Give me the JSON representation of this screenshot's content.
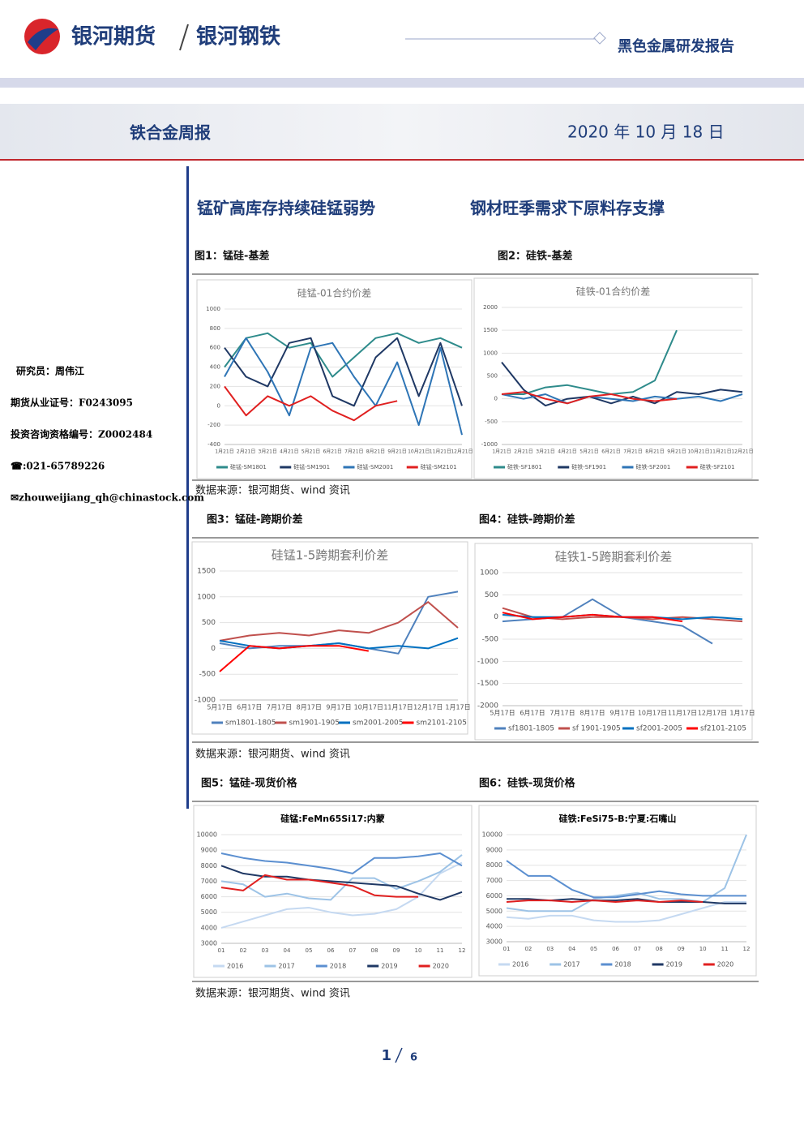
{
  "header": {
    "brand": "银河期货",
    "division": "银河钢铁",
    "report_type": "黑色金属研发报告",
    "title": "铁合金周报",
    "date": "2020 年 10 月 18 日"
  },
  "sidebar": {
    "analyst": "研究员：周伟江",
    "license": "期货从业证号：F0243095",
    "consult_license": "投资咨询资格编号：Z0002484",
    "phone": "☎:021-65789226",
    "email": "✉zhouweijiang_qh@chinastock.com"
  },
  "headlines": [
    "锰矿高库存持续硅锰弱势",
    "钢材旺季需求下原料存支撑"
  ],
  "sources": [
    "数据来源：银河期货、wind 资讯",
    "数据来源：银河期货、wind 资讯",
    "数据来源：银河期货、wind 资讯"
  ],
  "page": {
    "current": 1,
    "total": 6
  },
  "chart_data": [
    {
      "type": "line",
      "caption": "图1：锰硅-基差",
      "title": "硅锰-01合约价差",
      "grid": true,
      "legend": "bottom",
      "categories": [
        "1月21日",
        "2月21日",
        "3月21日",
        "4月21日",
        "5月21日",
        "6月21日",
        "7月21日",
        "8月21日",
        "9月21日",
        "10月21日",
        "11月21日",
        "12月21日"
      ],
      "ylim": [
        -400,
        1000
      ],
      "yticks": [
        -400,
        -200,
        0,
        200,
        400,
        600,
        800,
        1000
      ],
      "series": [
        {
          "name": "硅锰-SM1801",
          "color": "#2e8b8b",
          "values": [
            400,
            700,
            750,
            600,
            650,
            300,
            500,
            700,
            750,
            650,
            700,
            600
          ]
        },
        {
          "name": "硅锰-SM1901",
          "color": "#1f3864",
          "values": [
            600,
            300,
            200,
            650,
            700,
            100,
            0,
            500,
            700,
            100,
            650,
            0
          ]
        },
        {
          "name": "硅锰-SM2001",
          "color": "#2e75b6",
          "values": [
            300,
            700,
            350,
            -100,
            600,
            650,
            300,
            0,
            450,
            -200,
            600,
            -300
          ]
        },
        {
          "name": "硅锰-SM2101",
          "color": "#e02020",
          "values": [
            200,
            -100,
            100,
            0,
            100,
            -50,
            -150,
            0,
            50,
            null,
            null,
            null
          ]
        }
      ]
    },
    {
      "type": "line",
      "caption": "图2：硅铁-基差",
      "title": "硅铁-01合约价差",
      "grid": true,
      "legend": "bottom",
      "categories": [
        "1月21日",
        "2月21日",
        "3月21日",
        "4月21日",
        "5月21日",
        "6月21日",
        "7月21日",
        "8月21日",
        "9月21日",
        "10月21日",
        "11月21日",
        "12月21日"
      ],
      "ylim": [
        -1000,
        2000
      ],
      "yticks": [
        -1000,
        -500,
        0,
        500,
        1000,
        1500,
        2000
      ],
      "series": [
        {
          "name": "硅铁-SF1801",
          "color": "#2e8b8b",
          "values": [
            100,
            100,
            250,
            300,
            200,
            100,
            150,
            400,
            1500,
            null,
            null,
            null
          ]
        },
        {
          "name": "硅铁-SF1901",
          "color": "#1f3864",
          "values": [
            800,
            200,
            -150,
            0,
            50,
            -100,
            50,
            -100,
            150,
            100,
            200,
            150
          ]
        },
        {
          "name": "硅铁-SF2001",
          "color": "#2e75b6",
          "values": [
            100,
            0,
            100,
            -100,
            50,
            0,
            -50,
            50,
            0,
            50,
            -50,
            100
          ]
        },
        {
          "name": "硅铁-SF2101",
          "color": "#e02020",
          "values": [
            100,
            150,
            0,
            -100,
            50,
            100,
            0,
            -50,
            0,
            null,
            null,
            null
          ]
        }
      ]
    },
    {
      "type": "line",
      "caption": "图3：锰硅-跨期价差",
      "title": "硅锰1-5跨期套利价差",
      "grid": true,
      "legend": "bottom",
      "categories": [
        "5月17日",
        "6月17日",
        "7月17日",
        "8月17日",
        "9月17日",
        "10月17日",
        "11月17日",
        "12月17日",
        "1月17日"
      ],
      "ylim": [
        -1000,
        1500
      ],
      "yticks": [
        -1000,
        -500,
        0,
        500,
        1000,
        1500
      ],
      "series": [
        {
          "name": "sm1801-1805",
          "color": "#4f81bd",
          "values": [
            100,
            0,
            50,
            50,
            100,
            0,
            -100,
            1000,
            1100
          ]
        },
        {
          "name": "sm1901-1905",
          "color": "#c0504d",
          "values": [
            150,
            250,
            300,
            250,
            350,
            300,
            500,
            900,
            400
          ]
        },
        {
          "name": "sm2001-2005",
          "color": "#0070c0",
          "values": [
            150,
            50,
            0,
            50,
            100,
            0,
            50,
            0,
            200
          ]
        },
        {
          "name": "sm2101-2105",
          "color": "#ff0000",
          "values": [
            -450,
            50,
            0,
            50,
            50,
            -50,
            null,
            null,
            null
          ]
        }
      ]
    },
    {
      "type": "line",
      "caption": "图4：硅铁-跨期价差",
      "title": "硅铁1-5跨期套利价差",
      "grid": true,
      "legend": "bottom",
      "categories": [
        "5月17日",
        "6月17日",
        "7月17日",
        "8月17日",
        "9月17日",
        "10月17日",
        "11月17日",
        "12月17日",
        "1月17日"
      ],
      "ylim": [
        -2000,
        1000
      ],
      "yticks": [
        -2000,
        -1500,
        -1000,
        -500,
        0,
        500,
        1000
      ],
      "series": [
        {
          "name": "sf1801-1805",
          "color": "#4f81bd",
          "values": [
            -100,
            -50,
            0,
            400,
            0,
            -100,
            -200,
            -600,
            null
          ]
        },
        {
          "name": "sf 1901-1905",
          "color": "#c0504d",
          "values": [
            200,
            0,
            -50,
            0,
            0,
            -50,
            0,
            -50,
            -100
          ]
        },
        {
          "name": "sf2001-2005",
          "color": "#0070c0",
          "values": [
            50,
            0,
            0,
            50,
            0,
            0,
            -50,
            0,
            -50
          ]
        },
        {
          "name": "sf2101-2105",
          "color": "#ff0000",
          "values": [
            100,
            -50,
            0,
            50,
            0,
            0,
            -100,
            null,
            null
          ]
        }
      ]
    },
    {
      "type": "line",
      "caption": "图5：锰硅-现货价格",
      "title": "硅锰:FeMn65Si17:内蒙",
      "grid": true,
      "legend": "bottom",
      "categories": [
        "01",
        "02",
        "03",
        "04",
        "05",
        "06",
        "07",
        "08",
        "09",
        "10",
        "11",
        "12"
      ],
      "ylim": [
        3000,
        10000
      ],
      "yticks": [
        3000,
        4000,
        5000,
        6000,
        7000,
        8000,
        9000,
        10000
      ],
      "series": [
        {
          "name": "2016",
          "color": "#c5d9f1",
          "values": [
            4000,
            4400,
            4800,
            5200,
            5300,
            5000,
            4800,
            4900,
            5200,
            6000,
            7500,
            8200
          ]
        },
        {
          "name": "2017",
          "color": "#9dc3e6",
          "values": [
            7000,
            6800,
            6000,
            6200,
            5900,
            5800,
            7200,
            7200,
            6500,
            7000,
            7600,
            8700
          ]
        },
        {
          "name": "2018",
          "color": "#5b8fd0",
          "values": [
            8800,
            8500,
            8300,
            8200,
            8000,
            7800,
            7500,
            8500,
            8500,
            8600,
            8800,
            8000
          ]
        },
        {
          "name": "2019",
          "color": "#1f3864",
          "values": [
            8000,
            7500,
            7300,
            7300,
            7100,
            7000,
            6900,
            6800,
            6700,
            6200,
            5800,
            6300
          ]
        },
        {
          "name": "2020",
          "color": "#e02020",
          "values": [
            6600,
            6400,
            7400,
            7100,
            7100,
            6900,
            6700,
            6100,
            6000,
            6000,
            null,
            null
          ]
        }
      ]
    },
    {
      "type": "line",
      "caption": "图6：硅铁-现货价格",
      "title": "硅铁:FeSi75-B:宁夏:石嘴山",
      "grid": true,
      "legend": "bottom",
      "categories": [
        "01",
        "02",
        "03",
        "04",
        "05",
        "06",
        "07",
        "08",
        "09",
        "10",
        "11",
        "12"
      ],
      "ylim": [
        3000,
        10000
      ],
      "yticks": [
        3000,
        4000,
        5000,
        6000,
        7000,
        8000,
        9000,
        10000
      ],
      "series": [
        {
          "name": "2016",
          "color": "#c5d9f1",
          "values": [
            4600,
            4500,
            4700,
            4700,
            4400,
            4300,
            4300,
            4400,
            4800,
            5200,
            5600,
            5600
          ]
        },
        {
          "name": "2017",
          "color": "#9dc3e6",
          "values": [
            5200,
            5000,
            5000,
            5000,
            5800,
            6000,
            6200,
            5800,
            5800,
            5600,
            6500,
            10000
          ]
        },
        {
          "name": "2018",
          "color": "#5b8fd0",
          "values": [
            8300,
            7300,
            7300,
            6400,
            5900,
            5900,
            6100,
            6300,
            6100,
            6000,
            6000,
            6000
          ]
        },
        {
          "name": "2019",
          "color": "#1f3864",
          "values": [
            5800,
            5800,
            5700,
            5800,
            5700,
            5700,
            5800,
            5600,
            5600,
            5600,
            5500,
            5500
          ]
        },
        {
          "name": "2020",
          "color": "#e02020",
          "values": [
            5600,
            5700,
            5700,
            5600,
            5700,
            5600,
            5700,
            5600,
            5700,
            5600,
            null,
            null
          ]
        }
      ]
    }
  ]
}
